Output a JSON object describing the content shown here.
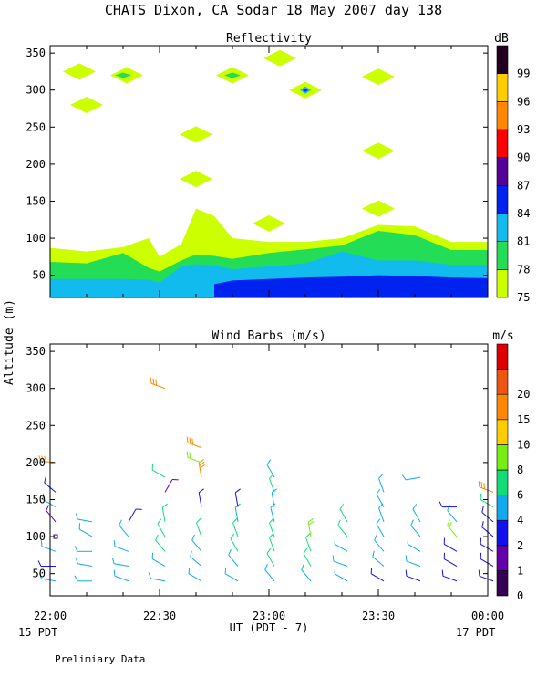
{
  "header": {
    "title": "CHATS Dixon, CA  Sodar  18 May 2007  day 138"
  },
  "footer": {
    "note": "Prelimiary Data"
  },
  "shared": {
    "ylabel": "Altitude (m)",
    "xlabel": "UT  (PDT - 7)",
    "x_ticks": [
      "22:00",
      "22:30",
      "23:00",
      "23:30",
      "00:00"
    ],
    "date_left": "15 PDT",
    "date_right": "17 PDT"
  },
  "chart_data": [
    {
      "type": "heatmap",
      "title": "Reflectivity",
      "x_range": [
        "22:00",
        "00:00"
      ],
      "ylim": [
        20,
        360
      ],
      "y_ticks": [
        50,
        100,
        150,
        200,
        250,
        300,
        350
      ],
      "colorbar": {
        "unit": "dB",
        "levels": [
          75,
          78,
          81,
          84,
          87,
          90,
          93,
          96,
          99
        ],
        "colors": [
          "#ccff00",
          "#22dd55",
          "#11bbee",
          "#0022ee",
          "#550099",
          "#ff0000",
          "#ff8800",
          "#ffcc00",
          "#220022"
        ]
      },
      "layers": [
        {
          "level": 75,
          "x": [
            "22:00",
            "22:10",
            "22:20",
            "22:27",
            "22:30",
            "22:36",
            "22:40",
            "22:45",
            "22:50",
            "23:00",
            "23:10",
            "23:20",
            "23:30",
            "23:40",
            "23:50",
            "00:00"
          ],
          "top": [
            87,
            82,
            88,
            100,
            75,
            92,
            140,
            130,
            100,
            95,
            95,
            100,
            118,
            116,
            95,
            95
          ]
        },
        {
          "level": 78,
          "x": [
            "22:00",
            "22:10",
            "22:20",
            "22:27",
            "22:30",
            "22:36",
            "22:40",
            "22:45",
            "22:50",
            "23:00",
            "23:10",
            "23:20",
            "23:30",
            "23:40",
            "23:50",
            "00:00"
          ],
          "top": [
            68,
            66,
            80,
            60,
            55,
            70,
            78,
            76,
            72,
            80,
            85,
            90,
            110,
            104,
            84,
            84
          ]
        },
        {
          "level": 81,
          "x": [
            "22:00",
            "22:10",
            "22:20",
            "22:27",
            "22:30",
            "22:36",
            "22:40",
            "22:45",
            "22:50",
            "23:00",
            "23:10",
            "23:20",
            "23:30",
            "23:40",
            "23:50",
            "00:00"
          ],
          "top": [
            45,
            45,
            45,
            44,
            40,
            62,
            65,
            63,
            58,
            62,
            66,
            82,
            70,
            70,
            64,
            64
          ]
        },
        {
          "level": 84,
          "x": [
            "22:45",
            "22:50",
            "23:00",
            "23:10",
            "23:20",
            "23:30",
            "23:40",
            "23:50",
            "00:00"
          ],
          "top": [
            38,
            43,
            45,
            47,
            48,
            50,
            49,
            47,
            46
          ]
        }
      ],
      "patches": [
        {
          "level": 75,
          "x": "22:08",
          "y": 325
        },
        {
          "level": 75,
          "x": "22:21",
          "y": 320
        },
        {
          "level": 75,
          "x": "22:10",
          "y": 280
        },
        {
          "level": 75,
          "x": "22:40",
          "y": 240
        },
        {
          "level": 75,
          "x": "22:40",
          "y": 180
        },
        {
          "level": 75,
          "x": "22:50",
          "y": 320
        },
        {
          "level": 75,
          "x": "23:03",
          "y": 343
        },
        {
          "level": 75,
          "x": "23:00",
          "y": 120
        },
        {
          "level": 75,
          "x": "23:10",
          "y": 300
        },
        {
          "level": 75,
          "x": "23:30",
          "y": 318
        },
        {
          "level": 75,
          "x": "23:30",
          "y": 218
        },
        {
          "level": 75,
          "x": "23:30",
          "y": 140
        },
        {
          "level": 78,
          "x": "22:20",
          "y": 320
        },
        {
          "level": 78,
          "x": "22:50",
          "y": 320
        },
        {
          "level": 81,
          "x": "23:10",
          "y": 300
        },
        {
          "level": 84,
          "x": "23:10",
          "y": 300
        }
      ]
    },
    {
      "type": "scatter",
      "title": "Wind Barbs (m/s)",
      "x_range": [
        "22:00",
        "00:00"
      ],
      "ylim": [
        20,
        360
      ],
      "y_ticks": [
        50,
        100,
        150,
        200,
        250,
        300,
        350
      ],
      "colorbar": {
        "unit": "m/s",
        "levels": [
          0,
          1,
          2,
          4,
          6,
          8,
          10,
          15,
          20
        ],
        "colors": [
          "#330055",
          "#6600aa",
          "#1111ee",
          "#11aaee",
          "#11dd77",
          "#77ee11",
          "#ffcc00",
          "#ff8800",
          "#ee5511",
          "#dd0000"
        ]
      },
      "columns": [
        "22:00",
        "22:05",
        "22:10",
        "22:15",
        "22:20",
        "22:25",
        "22:30",
        "22:35",
        "22:40",
        "22:45",
        "22:50",
        "22:55",
        "23:00",
        "23:05",
        "23:10",
        "23:15",
        "23:20",
        "23:25",
        "23:30",
        "23:35",
        "23:40",
        "23:45",
        "23:50",
        "23:55",
        "00:00"
      ],
      "barbs": [
        {
          "x": "22:00",
          "y": 40,
          "speed": 4,
          "dir": 280
        },
        {
          "x": "22:00",
          "y": 60,
          "speed": 3,
          "dir": 270
        },
        {
          "x": "22:00",
          "y": 80,
          "speed": 4,
          "dir": 290
        },
        {
          "x": "22:00",
          "y": 100,
          "speed": 0.5,
          "dir": 0
        },
        {
          "x": "22:00",
          "y": 120,
          "speed": 1,
          "dir": 320
        },
        {
          "x": "22:00",
          "y": 140,
          "speed": 4,
          "dir": 300
        },
        {
          "x": "22:00",
          "y": 160,
          "speed": 3.5,
          "dir": 310
        },
        {
          "x": "22:00",
          "y": 200,
          "speed": 15,
          "dir": 275
        },
        {
          "x": "22:10",
          "y": 40,
          "speed": 4,
          "dir": 270
        },
        {
          "x": "22:10",
          "y": 60,
          "speed": 4,
          "dir": 280
        },
        {
          "x": "22:10",
          "y": 80,
          "speed": 5,
          "dir": 270
        },
        {
          "x": "22:10",
          "y": 100,
          "speed": 5,
          "dir": 300
        },
        {
          "x": "22:10",
          "y": 120,
          "speed": 5,
          "dir": 280
        },
        {
          "x": "22:20",
          "y": 40,
          "speed": 4,
          "dir": 290
        },
        {
          "x": "22:20",
          "y": 60,
          "speed": 4,
          "dir": 280
        },
        {
          "x": "22:20",
          "y": 80,
          "speed": 5,
          "dir": 290
        },
        {
          "x": "22:20",
          "y": 100,
          "speed": 4,
          "dir": 320
        },
        {
          "x": "22:20",
          "y": 120,
          "speed": 2,
          "dir": 30
        },
        {
          "x": "22:30",
          "y": 40,
          "speed": 4,
          "dir": 280
        },
        {
          "x": "22:30",
          "y": 60,
          "speed": 4,
          "dir": 300
        },
        {
          "x": "22:30",
          "y": 80,
          "speed": 6,
          "dir": 320
        },
        {
          "x": "22:30",
          "y": 100,
          "speed": 6,
          "dir": 330
        },
        {
          "x": "22:30",
          "y": 120,
          "speed": 6,
          "dir": 350
        },
        {
          "x": "22:30",
          "y": 160,
          "speed": 1,
          "dir": 30
        },
        {
          "x": "22:30",
          "y": 180,
          "speed": 6,
          "dir": 300
        },
        {
          "x": "22:30",
          "y": 300,
          "speed": 15,
          "dir": 290
        },
        {
          "x": "22:40",
          "y": 40,
          "speed": 4,
          "dir": 300
        },
        {
          "x": "22:40",
          "y": 60,
          "speed": 4,
          "dir": 310
        },
        {
          "x": "22:40",
          "y": 80,
          "speed": 5,
          "dir": 320
        },
        {
          "x": "22:40",
          "y": 100,
          "speed": 6,
          "dir": 340
        },
        {
          "x": "22:40",
          "y": 140,
          "speed": 2,
          "dir": 350
        },
        {
          "x": "22:40",
          "y": 180,
          "speed": 15,
          "dir": 350
        },
        {
          "x": "22:40",
          "y": 200,
          "speed": 8,
          "dir": 290
        },
        {
          "x": "22:40",
          "y": 220,
          "speed": 15,
          "dir": 290
        },
        {
          "x": "22:50",
          "y": 40,
          "speed": 5,
          "dir": 300
        },
        {
          "x": "22:50",
          "y": 60,
          "speed": 5,
          "dir": 320
        },
        {
          "x": "22:50",
          "y": 80,
          "speed": 6,
          "dir": 330
        },
        {
          "x": "22:50",
          "y": 100,
          "speed": 6,
          "dir": 340
        },
        {
          "x": "22:50",
          "y": 120,
          "speed": 5,
          "dir": 350
        },
        {
          "x": "22:50",
          "y": 140,
          "speed": 3,
          "dir": 350
        },
        {
          "x": "23:00",
          "y": 40,
          "speed": 5,
          "dir": 320
        },
        {
          "x": "23:00",
          "y": 60,
          "speed": 6,
          "dir": 330
        },
        {
          "x": "23:00",
          "y": 80,
          "speed": 6,
          "dir": 340
        },
        {
          "x": "23:00",
          "y": 100,
          "speed": 6,
          "dir": 340
        },
        {
          "x": "23:00",
          "y": 120,
          "speed": 5,
          "dir": 345
        },
        {
          "x": "23:00",
          "y": 140,
          "speed": 5,
          "dir": 350
        },
        {
          "x": "23:00",
          "y": 160,
          "speed": 6,
          "dir": 340
        },
        {
          "x": "23:00",
          "y": 180,
          "speed": 4,
          "dir": 330
        },
        {
          "x": "23:10",
          "y": 40,
          "speed": 5,
          "dir": 320
        },
        {
          "x": "23:10",
          "y": 60,
          "speed": 6,
          "dir": 330
        },
        {
          "x": "23:10",
          "y": 80,
          "speed": 6,
          "dir": 340
        },
        {
          "x": "23:10",
          "y": 100,
          "speed": 8,
          "dir": 350
        },
        {
          "x": "23:20",
          "y": 40,
          "speed": 4,
          "dir": 300
        },
        {
          "x": "23:20",
          "y": 60,
          "speed": 4,
          "dir": 290
        },
        {
          "x": "23:20",
          "y": 80,
          "speed": 5,
          "dir": 300
        },
        {
          "x": "23:20",
          "y": 100,
          "speed": 6,
          "dir": 320
        },
        {
          "x": "23:20",
          "y": 120,
          "speed": 6,
          "dir": 330
        },
        {
          "x": "23:30",
          "y": 40,
          "speed": 3,
          "dir": 300
        },
        {
          "x": "23:30",
          "y": 60,
          "speed": 4,
          "dir": 310
        },
        {
          "x": "23:30",
          "y": 80,
          "speed": 5,
          "dir": 320
        },
        {
          "x": "23:30",
          "y": 100,
          "speed": 5,
          "dir": 330
        },
        {
          "x": "23:30",
          "y": 120,
          "speed": 5,
          "dir": 340
        },
        {
          "x": "23:30",
          "y": 140,
          "speed": 4,
          "dir": 330
        },
        {
          "x": "23:30",
          "y": 160,
          "speed": 4,
          "dir": 340
        },
        {
          "x": "23:40",
          "y": 40,
          "speed": 3,
          "dir": 290
        },
        {
          "x": "23:40",
          "y": 60,
          "speed": 4,
          "dir": 290
        },
        {
          "x": "23:40",
          "y": 80,
          "speed": 4,
          "dir": 300
        },
        {
          "x": "23:40",
          "y": 100,
          "speed": 5,
          "dir": 320
        },
        {
          "x": "23:40",
          "y": 120,
          "speed": 4,
          "dir": 330
        },
        {
          "x": "23:40",
          "y": 180,
          "speed": 5,
          "dir": 260
        },
        {
          "x": "23:50",
          "y": 40,
          "speed": 3,
          "dir": 290
        },
        {
          "x": "23:50",
          "y": 60,
          "speed": 3,
          "dir": 300
        },
        {
          "x": "23:50",
          "y": 80,
          "speed": 3,
          "dir": 300
        },
        {
          "x": "23:50",
          "y": 100,
          "speed": 8,
          "dir": 320
        },
        {
          "x": "23:50",
          "y": 120,
          "speed": 4,
          "dir": 320
        },
        {
          "x": "23:50",
          "y": 140,
          "speed": 2,
          "dir": 270
        },
        {
          "x": "00:00",
          "y": 40,
          "speed": 3,
          "dir": 290
        },
        {
          "x": "00:00",
          "y": 60,
          "speed": 3,
          "dir": 300
        },
        {
          "x": "00:00",
          "y": 80,
          "speed": 3,
          "dir": 300
        },
        {
          "x": "00:00",
          "y": 100,
          "speed": 3,
          "dir": 310
        },
        {
          "x": "00:00",
          "y": 120,
          "speed": 3,
          "dir": 310
        },
        {
          "x": "00:00",
          "y": 140,
          "speed": 6,
          "dir": 300
        },
        {
          "x": "00:00",
          "y": 160,
          "speed": 15,
          "dir": 290
        }
      ]
    }
  ]
}
